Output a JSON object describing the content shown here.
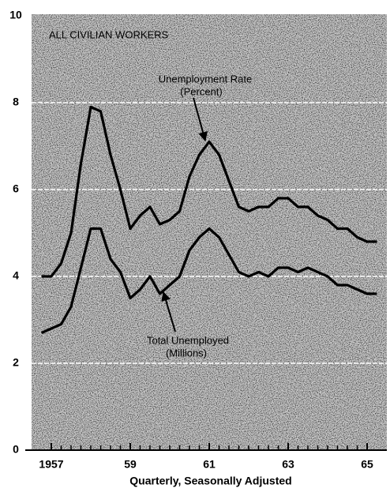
{
  "chart_data": {
    "type": "line",
    "annotations": [
      "ALL CIVILIAN WORKERS",
      "Unemployment Rate",
      "(Percent)",
      "Total Unemployed",
      "(Millions)"
    ],
    "x_label": "Quarterly, Seasonally Adjusted",
    "x": [
      1956.75,
      1957,
      1957.25,
      1957.5,
      1957.75,
      1958,
      1958.25,
      1958.5,
      1958.75,
      1959,
      1959.25,
      1959.5,
      1959.75,
      1960,
      1960.25,
      1960.5,
      1960.75,
      1961,
      1961.25,
      1961.5,
      1961.75,
      1962,
      1962.25,
      1962.5,
      1962.75,
      1963,
      1963.25,
      1963.5,
      1963.75,
      1964,
      1964.25,
      1964.5,
      1964.75,
      1965,
      1965.25
    ],
    "series": [
      {
        "name": "Unemployment Rate",
        "color": "#000000",
        "values": [
          4.0,
          4.0,
          4.3,
          5.0,
          6.6,
          7.9,
          7.8,
          6.8,
          6.0,
          5.1,
          5.4,
          5.6,
          5.2,
          5.3,
          5.5,
          6.3,
          6.8,
          7.1,
          6.8,
          6.2,
          5.6,
          5.5,
          5.6,
          5.6,
          5.8,
          5.8,
          5.6,
          5.6,
          5.4,
          5.3,
          5.1,
          5.1,
          4.9,
          4.8,
          4.8
        ]
      },
      {
        "name": "Total Unemployed",
        "color": "#000000",
        "values": [
          2.7,
          2.8,
          2.9,
          3.3,
          4.2,
          5.1,
          5.1,
          4.4,
          4.1,
          3.5,
          3.7,
          4.0,
          3.6,
          3.8,
          4.0,
          4.6,
          4.9,
          5.1,
          4.9,
          4.5,
          4.1,
          4.0,
          4.1,
          4.0,
          4.2,
          4.2,
          4.1,
          4.2,
          4.1,
          4.0,
          3.8,
          3.8,
          3.7,
          3.6,
          3.6
        ]
      }
    ],
    "xlim": [
      1956.5,
      1965.5
    ],
    "xticks": [
      1957,
      {
        "value": 1959,
        "label": "59"
      },
      {
        "value": 1961,
        "label": "61"
      },
      {
        "value": 1963,
        "label": "63"
      },
      {
        "value": 1965,
        "label": "65"
      }
    ],
    "ylim": [
      0,
      10
    ],
    "yticks": [
      0,
      2,
      4,
      6,
      8,
      10
    ],
    "grid": true
  }
}
